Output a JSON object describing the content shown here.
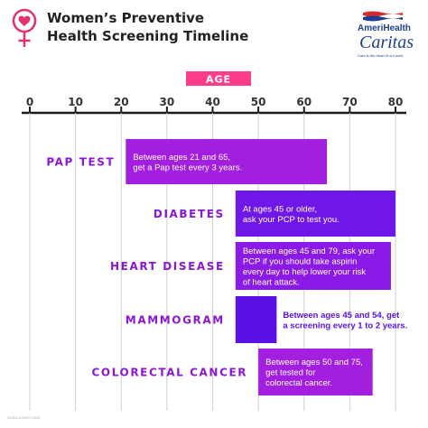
{
  "header": {
    "title_line1": "Women’s Preventive",
    "title_line2": "Health Screening Timeline",
    "icon": "female-symbol-heart-icon",
    "accent_color": "#e0336f"
  },
  "logo": {
    "name_line1": "AmeriHealth",
    "name_line2": "Caritas",
    "tagline": "Care is the heart of our work",
    "brand_color": "#1c3f94"
  },
  "footer": {
    "code": "SCRN-CHART-2019"
  },
  "chart_data": {
    "type": "bar",
    "axis_title": "AGE",
    "xlim": [
      0,
      80
    ],
    "ticks": [
      0,
      10,
      20,
      30,
      40,
      50,
      60,
      70,
      80
    ],
    "tick_labels": [
      "0",
      "10",
      "20",
      "30",
      "40",
      "50",
      "60",
      "70",
      "80"
    ],
    "grid": true,
    "categories": [
      "PAP TEST",
      "DIABETES",
      "HEART DISEASE",
      "MAMMOGRAM",
      "COLORECTAL CANCER"
    ],
    "series": [
      {
        "values": [
          [
            21,
            65
          ],
          [
            45,
            80
          ],
          [
            45,
            79
          ],
          [
            45,
            54
          ],
          [
            50,
            75
          ]
        ]
      }
    ],
    "annotations": [
      [
        "Between ages 21 and 65,",
        "get a Pap test every 3 years."
      ],
      [
        "At ages 45 or older,",
        "ask your PCP to test you."
      ],
      [
        "Between ages 45 and 79, ask your",
        "PCP if you should take aspirin",
        "every day to help lower your risk",
        "of heart attack."
      ],
      [
        "Between ages 45 and 54, get",
        "a screening every 1 to 2 years."
      ],
      [
        "Between ages 50 and 75,",
        "get tested for",
        "colorectal cancer."
      ]
    ],
    "colors": [
      "#a21fe0",
      "#6f16e8",
      "#8c1ae6",
      "#5a12e4",
      "#a21fe0"
    ],
    "label_color": "#8a17d6",
    "axis_color": "#1b1b1b",
    "age_badge_color": "#ff3d8b"
  }
}
